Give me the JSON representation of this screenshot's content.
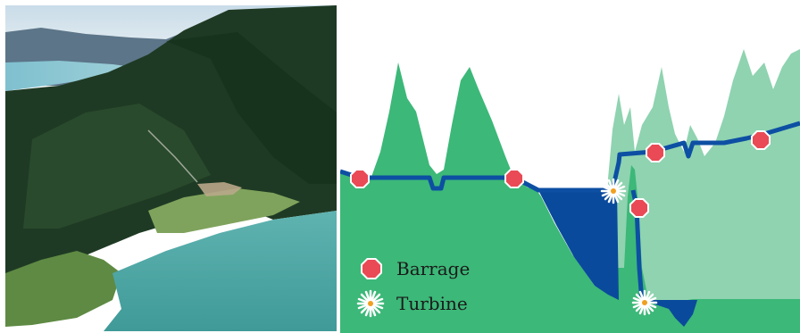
{
  "legend": {
    "barrage_label": "Barrage",
    "turbine_label": "Turbine"
  },
  "colors": {
    "hill_dark": "#3cb878",
    "hill_light": "#8fd3b0",
    "water": "#0a4a9c",
    "pipeline": "#0d4fa3",
    "barrage_marker": "#e94a55",
    "turbine_marker": "#ffffff"
  },
  "icons": {
    "barrage": "red-octagon-icon",
    "turbine": "white-star-burst-icon"
  }
}
